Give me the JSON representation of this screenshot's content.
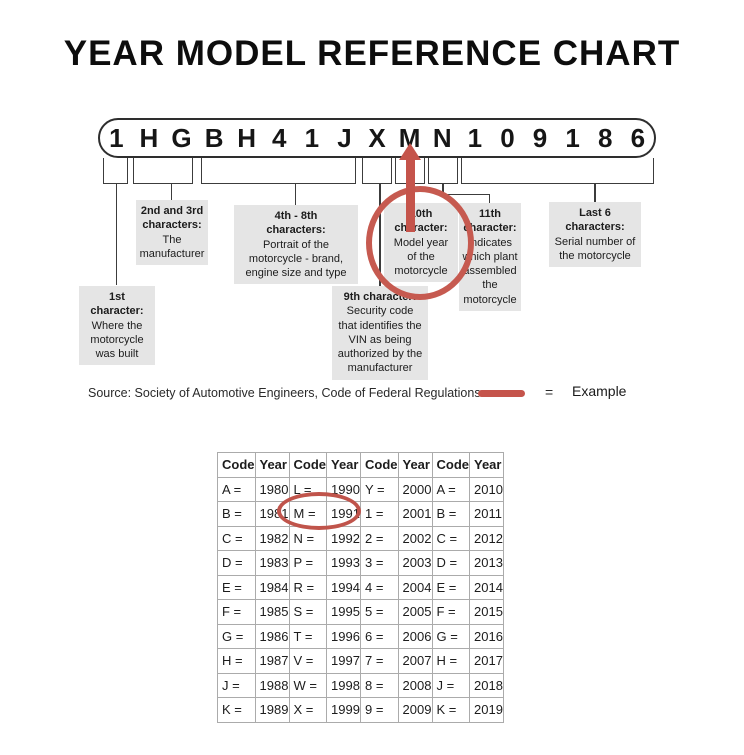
{
  "title": "YEAR MODEL REFERENCE CHART",
  "vin": {
    "characters": [
      "1",
      "H",
      "G",
      "B",
      "H",
      "4",
      "1",
      "J",
      "X",
      "M",
      "N",
      "1",
      "0",
      "9",
      "1",
      "8",
      "6"
    ]
  },
  "callouts": {
    "first": {
      "heading": "1st\ncharacter:",
      "body": "Where the\nmotorcycle\nwas built"
    },
    "second_third": {
      "heading": "2nd and 3rd\ncharacters:",
      "body": "The\nmanufacturer"
    },
    "fourth_eighth": {
      "heading": "4th - 8th\ncharacters:",
      "body": "Portrait of the\nmotorcycle - brand,\nengine size and type"
    },
    "ninth": {
      "heading": "9th character:",
      "body": "Security code\nthat identifies the\nVIN as being\nauthorized by the\nmanufacturer"
    },
    "tenth": {
      "heading": "10th\ncharacter:",
      "body": "Model year\nof the\nmotorcycle"
    },
    "eleventh": {
      "heading": "11th\ncharacter:",
      "body": "Indicates\nwhich plant\nassembled\nthe\nmotorcycle"
    },
    "last_six": {
      "heading": "Last 6\ncharacters:",
      "body": "Serial number of\nthe motorcycle"
    }
  },
  "legend": {
    "source": "Source:  Society of Automotive Engineers, Code of Federal Regulations",
    "equals": "=",
    "example": "Example"
  },
  "colors": {
    "accent_red": "#c5544b",
    "callout_bg": "#e5e5e5"
  },
  "table": {
    "headers": [
      "Code",
      "Year",
      "Code",
      "Year",
      "Code",
      "Year",
      "Code",
      "Year"
    ],
    "rows": [
      [
        "A =",
        "1980",
        "L =",
        "1990",
        "Y =",
        "2000",
        "A =",
        "2010"
      ],
      [
        "B =",
        "1981",
        "M =",
        "1991",
        "1 =",
        "2001",
        "B =",
        "2011"
      ],
      [
        "C =",
        "1982",
        "N =",
        "1992",
        "2 =",
        "2002",
        "C =",
        "2012"
      ],
      [
        "D =",
        "1983",
        "P =",
        "1993",
        "3 =",
        "2003",
        "D =",
        "2013"
      ],
      [
        "E =",
        "1984",
        "R =",
        "1994",
        "4 =",
        "2004",
        "E =",
        "2014"
      ],
      [
        "F =",
        "1985",
        "S =",
        "1995",
        "5 =",
        "2005",
        "F =",
        "2015"
      ],
      [
        "G =",
        "1986",
        "T =",
        "1996",
        "6 =",
        "2006",
        "G =",
        "2016"
      ],
      [
        "H =",
        "1987",
        "V =",
        "1997",
        "7 =",
        "2007",
        "H =",
        "2017"
      ],
      [
        "J =",
        "1988",
        "W =",
        "1998",
        "8 =",
        "2008",
        "J =",
        "2018"
      ],
      [
        "K =",
        "1989",
        "X =",
        "1999",
        "9 =",
        "2009",
        "K =",
        "2019"
      ]
    ]
  }
}
